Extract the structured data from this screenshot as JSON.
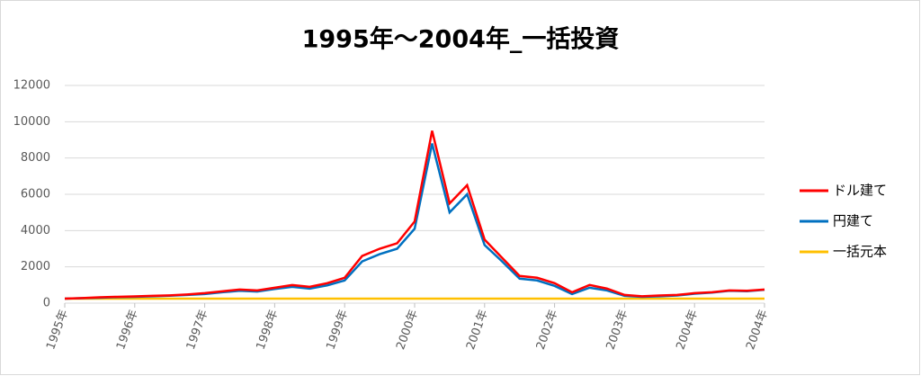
{
  "chart_data": {
    "type": "line",
    "title": "1995年～2004年_一括投資",
    "categories": [
      "1995年",
      null,
      null,
      null,
      "1996年",
      null,
      null,
      null,
      "1997年",
      null,
      null,
      null,
      "1998年",
      null,
      null,
      null,
      "1999年",
      null,
      null,
      null,
      "2000年",
      null,
      null,
      null,
      "2001年",
      null,
      null,
      null,
      "2002年",
      null,
      null,
      null,
      "2003年",
      null,
      null,
      null,
      "2004年",
      null,
      null,
      null,
      "2004年"
    ],
    "series": [
      {
        "name": "ドル建て",
        "color": "#ff0000",
        "values": [
          250,
          280,
          320,
          350,
          370,
          400,
          430,
          480,
          550,
          650,
          750,
          700,
          850,
          1000,
          900,
          1100,
          1400,
          2600,
          3000,
          3300,
          4500,
          9500,
          5500,
          6500,
          3500,
          2500,
          1500,
          1400,
          1100,
          600,
          1000,
          800,
          450,
          380,
          420,
          450,
          550,
          600,
          700,
          680,
          750
        ]
      },
      {
        "name": "円建て",
        "color": "#0070c0",
        "values": [
          250,
          270,
          300,
          330,
          350,
          380,
          410,
          450,
          500,
          600,
          680,
          640,
          780,
          900,
          800,
          980,
          1250,
          2300,
          2700,
          3000,
          4100,
          8800,
          5000,
          6000,
          3200,
          2300,
          1350,
          1250,
          950,
          500,
          850,
          700,
          400,
          350,
          380,
          420,
          520,
          580,
          680,
          660,
          740
        ]
      },
      {
        "name": "一括元本",
        "color": "#ffc000",
        "values": [
          250,
          250,
          250,
          250,
          250,
          250,
          250,
          250,
          250,
          250,
          250,
          250,
          250,
          250,
          250,
          250,
          250,
          250,
          250,
          250,
          250,
          250,
          250,
          250,
          250,
          250,
          250,
          250,
          250,
          250,
          250,
          250,
          250,
          250,
          250,
          250,
          250,
          250,
          250,
          250,
          250
        ]
      }
    ],
    "ylim": [
      0,
      12000
    ],
    "yticks": [
      0,
      2000,
      4000,
      6000,
      8000,
      10000,
      12000
    ],
    "grid": true,
    "legend": "right"
  }
}
